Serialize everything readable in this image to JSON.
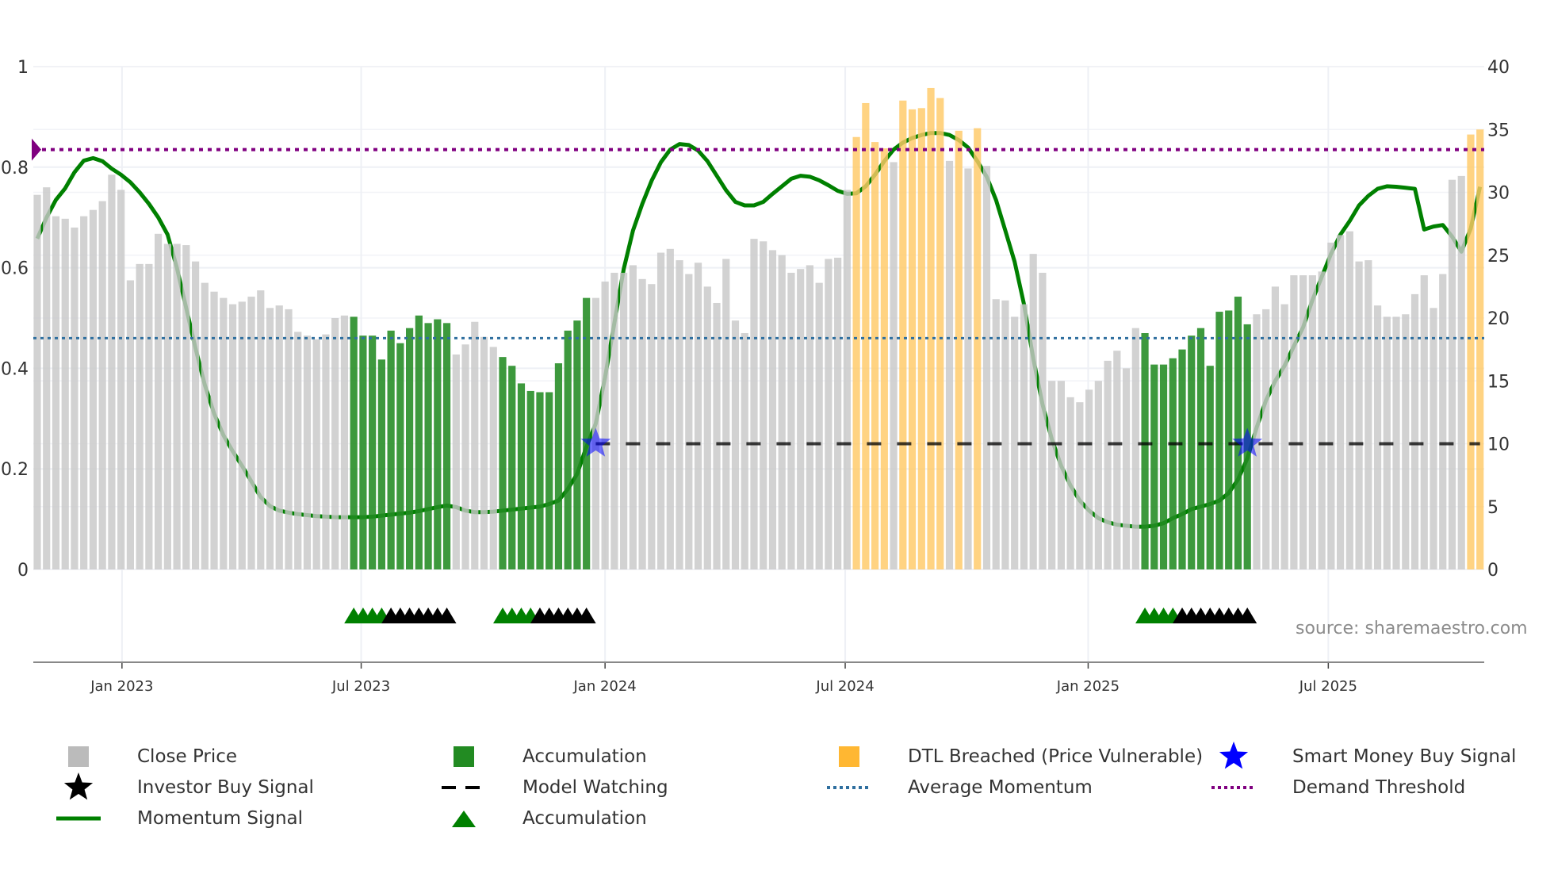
{
  "chart_data": {
    "type": "bar",
    "title": "",
    "xlabel": "",
    "ylabel_left": "",
    "ylabel_right": "",
    "left_axis": {
      "range": [
        0,
        1
      ],
      "ticks": [
        0,
        0.2,
        0.4,
        0.6,
        0.8,
        1
      ],
      "labels": [
        "0",
        "0.2",
        "0.4",
        "0.6",
        "0.8",
        "1"
      ]
    },
    "right_axis": {
      "range": [
        0,
        40
      ],
      "ticks": [
        0,
        5,
        10,
        15,
        20,
        25,
        30,
        35,
        40
      ],
      "labels": [
        "0",
        "5",
        "10",
        "15",
        "20",
        "25",
        "30",
        "35",
        "40"
      ]
    },
    "x_unit": "week index",
    "x_ticks": [
      {
        "label": "Jan 2023",
        "at": 9.1
      },
      {
        "label": "Jul 2023",
        "at": 34.8
      },
      {
        "label": "Jan 2024",
        "at": 61.0
      },
      {
        "label": "Jul 2024",
        "at": 86.8
      },
      {
        "label": "Jan 2025",
        "at": 112.9
      },
      {
        "label": "Jul 2025",
        "at": 138.7
      }
    ],
    "close_price": [
      29.8,
      30.4,
      28.1,
      27.9,
      27.2,
      28.1,
      28.6,
      29.3,
      31.4,
      30.2,
      23.0,
      24.3,
      24.3,
      26.7,
      25.9,
      25.9,
      25.8,
      24.5,
      22.8,
      22.1,
      21.6,
      21.1,
      21.3,
      21.7,
      22.2,
      20.8,
      21.0,
      20.7,
      18.9,
      18.6,
      18.3,
      18.7,
      20.0,
      20.2,
      20.1,
      18.6,
      18.6,
      16.7,
      19.0,
      18.0,
      19.2,
      20.2,
      19.6,
      19.9,
      19.6,
      17.1,
      17.9,
      19.7,
      18.5,
      17.7,
      16.9,
      16.2,
      14.8,
      14.2,
      14.1,
      14.1,
      16.4,
      19.0,
      19.8,
      21.6,
      21.6,
      22.9,
      23.6,
      23.6,
      24.2,
      23.1,
      22.7,
      25.2,
      25.5,
      24.6,
      23.5,
      24.4,
      22.5,
      21.2,
      24.7,
      19.8,
      18.8,
      26.3,
      26.1,
      25.4,
      25.0,
      23.6,
      23.9,
      24.2,
      22.8,
      24.7,
      24.8,
      30.2,
      34.4,
      37.1,
      34.0,
      33.5,
      32.4,
      37.3,
      36.6,
      36.7,
      38.3,
      37.5,
      32.5,
      34.9,
      31.9,
      35.1,
      32.1,
      21.5,
      21.4,
      20.1,
      21.1,
      25.1,
      23.6,
      15.0,
      15.0,
      13.7,
      13.3,
      14.3,
      15.0,
      16.6,
      17.4,
      16.0,
      19.2,
      18.8,
      16.3,
      16.3,
      16.8,
      17.5,
      18.6,
      19.2,
      16.2,
      20.5,
      20.6,
      21.7,
      19.5,
      20.3,
      20.7,
      22.5,
      21.1,
      23.4,
      23.4,
      23.4,
      23.7,
      26.0,
      26.6,
      26.9,
      24.5,
      24.6,
      21.0,
      20.1,
      20.1,
      20.3,
      21.9,
      23.4,
      20.8,
      23.5,
      31.0,
      31.3,
      34.6,
      35.0
    ],
    "accumulation_bars": [
      34,
      35,
      36,
      37,
      38,
      39,
      40,
      41,
      42,
      43,
      44,
      50,
      51,
      52,
      53,
      54,
      55,
      56,
      57,
      58,
      59,
      119,
      120,
      121,
      122,
      123,
      124,
      125,
      126,
      127,
      128,
      129,
      130
    ],
    "dtl_breached_bars": [
      88,
      89,
      90,
      91,
      93,
      94,
      95,
      96,
      97,
      99,
      101,
      154,
      155
    ],
    "momentum_signal": [
      0.658,
      0.7,
      0.735,
      0.758,
      0.79,
      0.813,
      0.818,
      0.812,
      0.797,
      0.785,
      0.77,
      0.75,
      0.727,
      0.7,
      0.666,
      0.6,
      0.52,
      0.44,
      0.367,
      0.31,
      0.267,
      0.235,
      0.206,
      0.175,
      0.144,
      0.126,
      0.117,
      0.113,
      0.11,
      0.108,
      0.106,
      0.105,
      0.104,
      0.104,
      0.104,
      0.104,
      0.105,
      0.107,
      0.109,
      0.111,
      0.113,
      0.116,
      0.12,
      0.124,
      0.127,
      0.124,
      0.117,
      0.114,
      0.114,
      0.115,
      0.117,
      0.119,
      0.121,
      0.123,
      0.125,
      0.13,
      0.137,
      0.16,
      0.19,
      0.244,
      0.29,
      0.382,
      0.49,
      0.597,
      0.674,
      0.727,
      0.773,
      0.81,
      0.835,
      0.846,
      0.844,
      0.833,
      0.812,
      0.783,
      0.754,
      0.731,
      0.724,
      0.724,
      0.731,
      0.747,
      0.762,
      0.777,
      0.783,
      0.781,
      0.774,
      0.764,
      0.753,
      0.747,
      0.748,
      0.762,
      0.785,
      0.812,
      0.835,
      0.849,
      0.858,
      0.864,
      0.868,
      0.868,
      0.864,
      0.854,
      0.839,
      0.812,
      0.781,
      0.735,
      0.674,
      0.612,
      0.528,
      0.42,
      0.328,
      0.259,
      0.206,
      0.167,
      0.137,
      0.117,
      0.102,
      0.094,
      0.089,
      0.087,
      0.085,
      0.085,
      0.087,
      0.092,
      0.102,
      0.11,
      0.12,
      0.125,
      0.13,
      0.137,
      0.152,
      0.179,
      0.221,
      0.282,
      0.336,
      0.375,
      0.405,
      0.444,
      0.482,
      0.536,
      0.582,
      0.628,
      0.666,
      0.693,
      0.724,
      0.743,
      0.757,
      0.762,
      0.761,
      0.759,
      0.757,
      0.676,
      0.682,
      0.685,
      0.662,
      0.632,
      0.678,
      0.761
    ],
    "average_momentum": 0.46,
    "demand_threshold": 0.835,
    "model_watching": {
      "value_right_axis": 10,
      "from": 60,
      "to": 155
    },
    "smart_money_buy_signals": [
      60,
      130
    ],
    "accumulation_markers": {
      "green": [
        34,
        35,
        36,
        37,
        50,
        51,
        52,
        53,
        119,
        120,
        121,
        122
      ],
      "black": [
        38,
        39,
        40,
        41,
        42,
        43,
        44,
        54,
        55,
        56,
        57,
        58,
        59,
        123,
        124,
        125,
        126,
        127,
        128,
        129,
        130
      ]
    },
    "colors": {
      "close": "#c8c8c8",
      "accumulation": "#228b22",
      "dtl": "#ffc966",
      "momentum": "#008000",
      "average": "#2f6f9f",
      "threshold": "#800080",
      "smart_money": "#0000ff",
      "investor": "#000000",
      "watch": "#000000"
    },
    "legend": [
      {
        "label": "Close Price",
        "icon": "square",
        "color": "#bbbbbb"
      },
      {
        "label": "Accumulation",
        "icon": "square",
        "color": "#228b22"
      },
      {
        "label": "DTL Breached (Price Vulnerable)",
        "icon": "square",
        "color": "#ffb732"
      },
      {
        "label": "Smart Money Buy Signal",
        "icon": "star",
        "color": "#0000ff"
      },
      {
        "label": "Investor Buy Signal",
        "icon": "star",
        "color": "#000000"
      },
      {
        "label": "Model Watching",
        "icon": "dash",
        "color": "#000000"
      },
      {
        "label": "Average Momentum",
        "icon": "dot",
        "color": "#2f6f9f"
      },
      {
        "label": "Demand Threshold",
        "icon": "dot",
        "color": "#800080"
      },
      {
        "label": "Momentum Signal",
        "icon": "line",
        "color": "#008000"
      },
      {
        "label": "Accumulation",
        "icon": "triangle",
        "color": "#008000"
      }
    ],
    "source": "source: sharemaestro.com"
  }
}
